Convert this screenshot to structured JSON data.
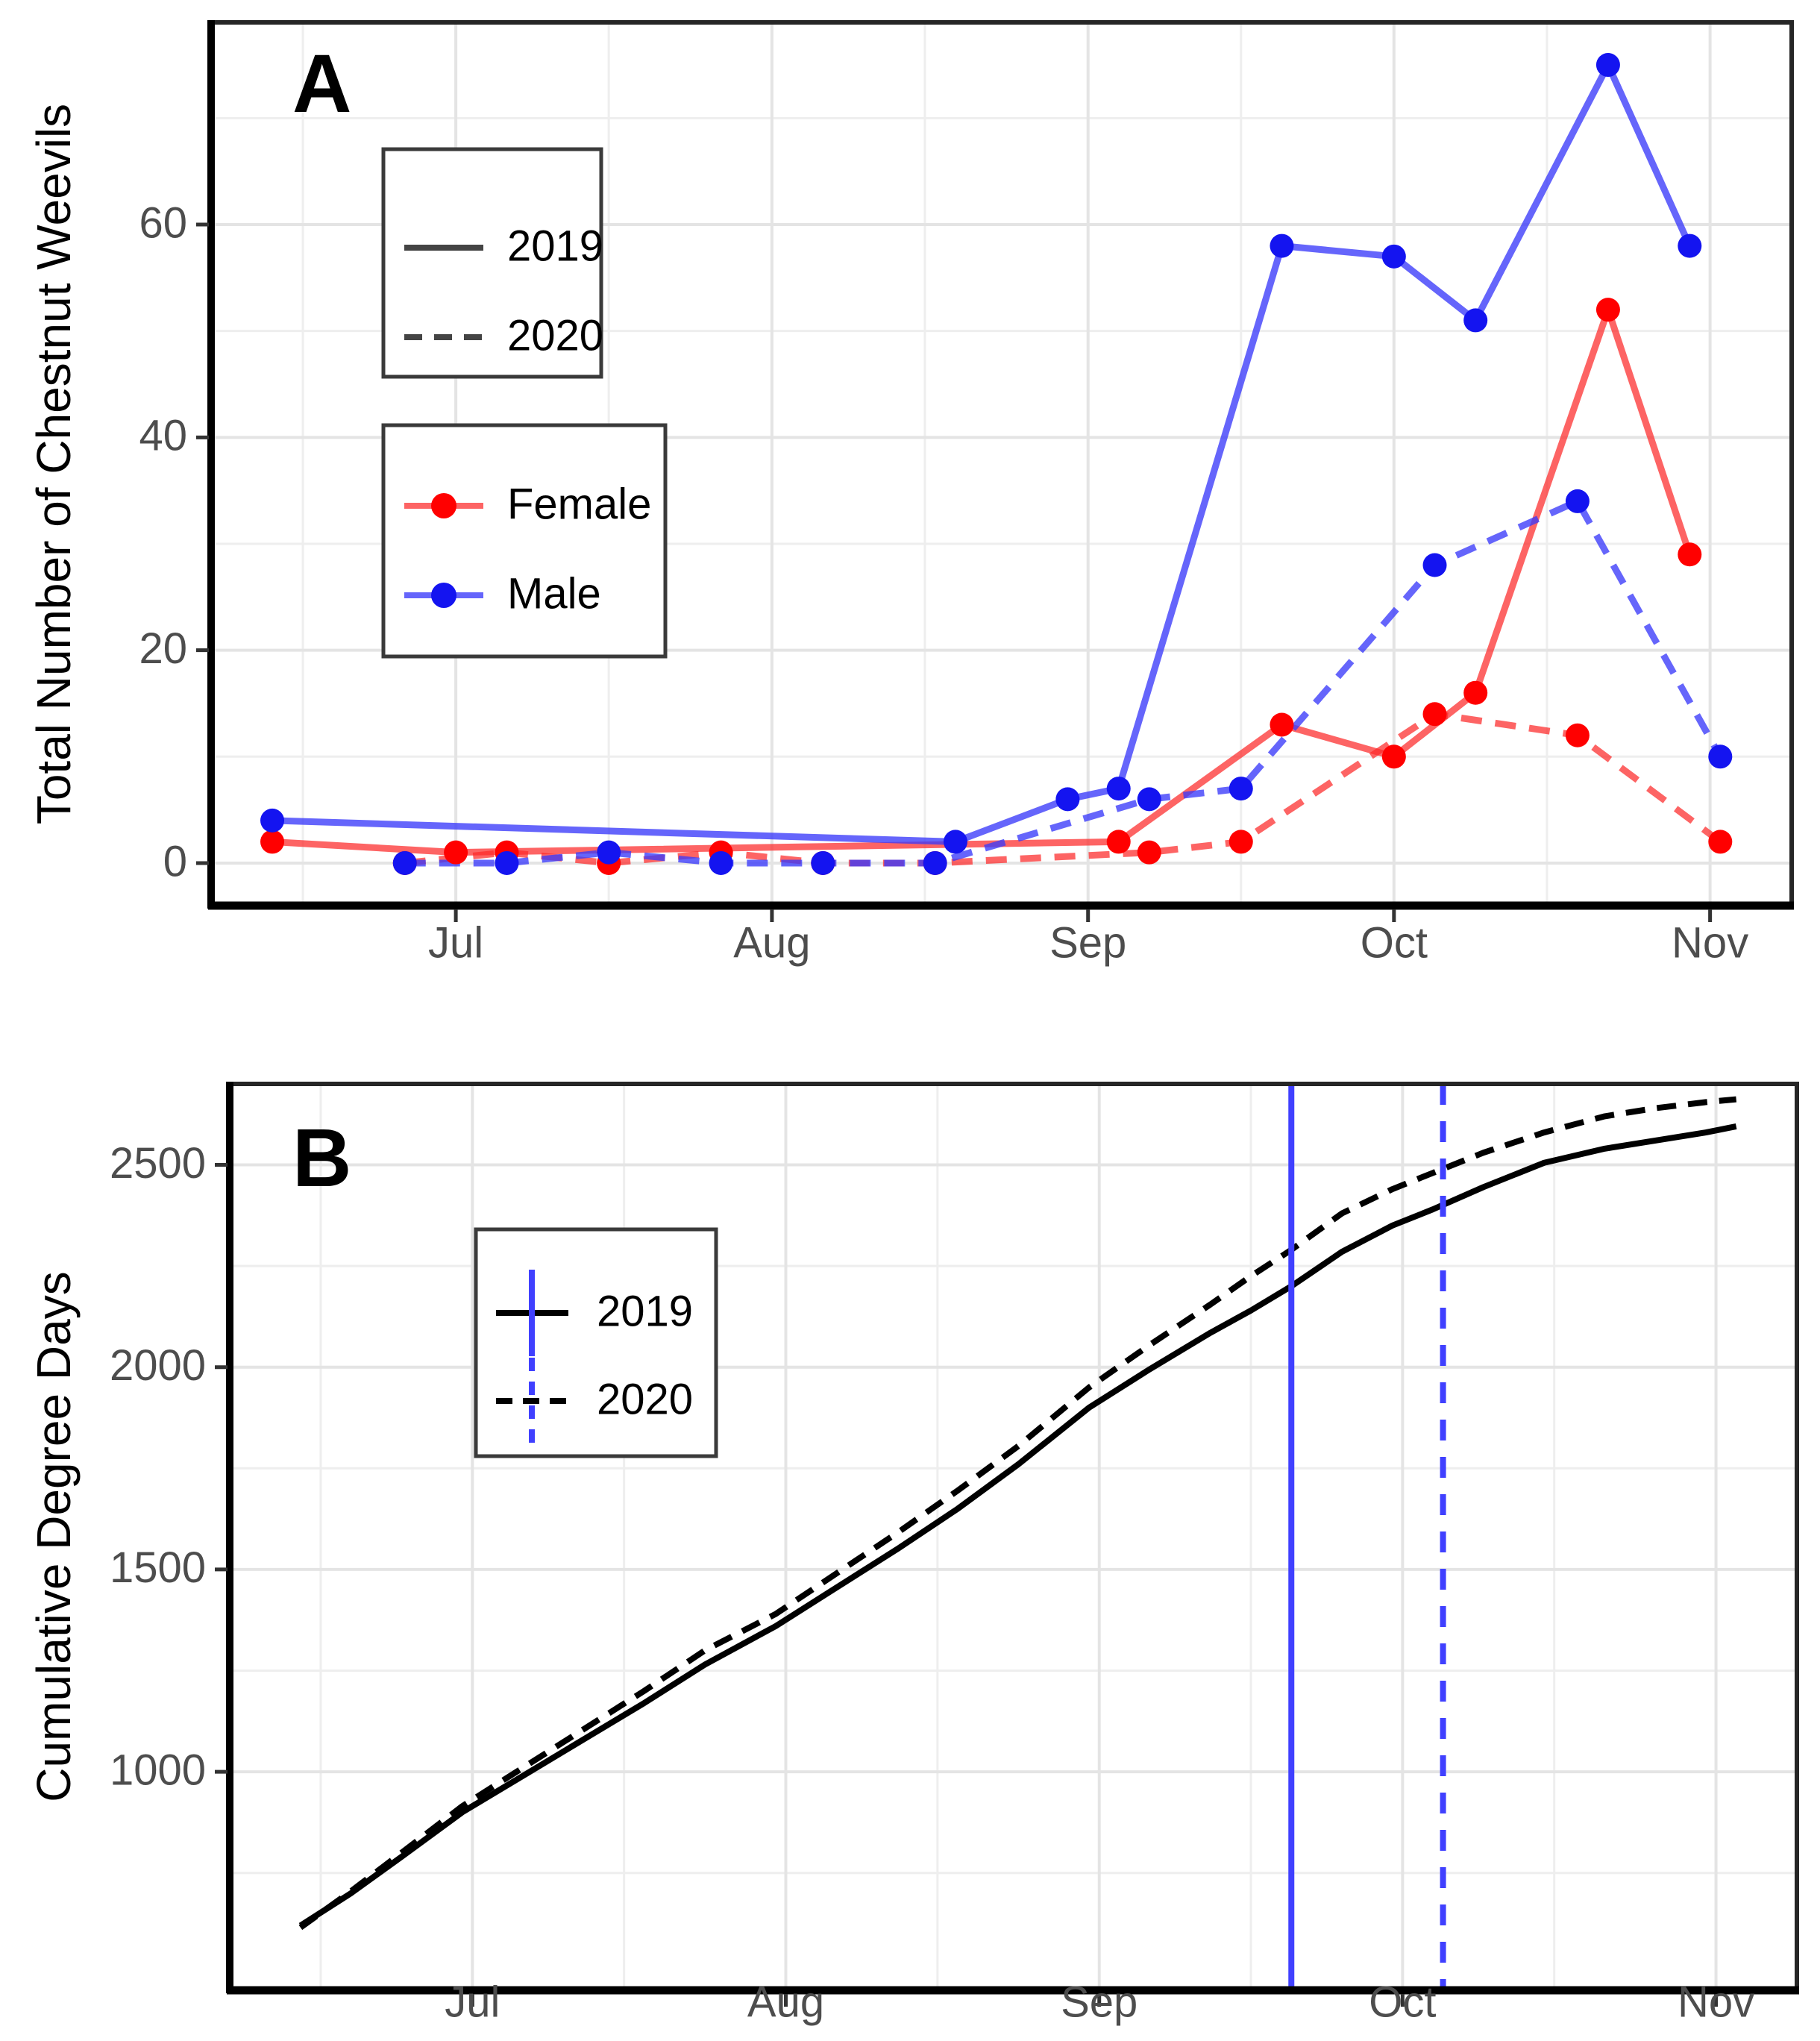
{
  "figure": {
    "background": "#ffffff",
    "colors": {
      "female": "#ff0000",
      "male": "#1414f0",
      "female_line": "rgba(252,40,40,0.72)",
      "male_line": "rgba(58,58,250,0.78)",
      "degree_day_curve": "#000000",
      "vline_blue": "#4040ff",
      "grid_major": "#e4e4e4",
      "grid_minor": "#eeeeee",
      "tick_text": "#4d4d4d",
      "panel_border": "#262626"
    }
  },
  "chart_data": [
    {
      "type": "line",
      "panel_label": "A",
      "y_title": "Total Number of Chestnut Weevils",
      "x_tick_labels": [
        "Jul",
        "Aug",
        "Sep",
        "Oct",
        "Nov"
      ],
      "x_tick_days": [
        18,
        49,
        80,
        110,
        141
      ],
      "x_minor_days": [
        3,
        33,
        64,
        95,
        125
      ],
      "day_index_origin": "Jun 13",
      "x_domain_days": [
        -6,
        149
      ],
      "ylim": [
        -4,
        79
      ],
      "y_major": [
        0,
        20,
        40,
        60
      ],
      "y_minor": [
        10,
        30,
        50,
        70
      ],
      "grid": true,
      "legend_years": {
        "position": "top-left-inset",
        "items": [
          {
            "label": "2019",
            "style": "solid"
          },
          {
            "label": "2020",
            "style": "dashed"
          }
        ]
      },
      "legend_sex": {
        "position": "left-inset",
        "items": [
          {
            "label": "Female",
            "color_key": "female"
          },
          {
            "label": "Male",
            "color_key": "male"
          }
        ]
      },
      "series": [
        {
          "name": "Female 2019",
          "sex": "Female",
          "year": "2019",
          "style": "solid",
          "color_key": "female",
          "points": [
            {
              "date": "Jun 13",
              "day": 0,
              "count": 2
            },
            {
              "date": "Jul 1",
              "day": 18,
              "count": 1
            },
            {
              "date": "Sep 4",
              "day": 83,
              "count": 2
            },
            {
              "date": "Sep 20",
              "day": 99,
              "count": 13
            },
            {
              "date": "Oct 1",
              "day": 110,
              "count": 10
            },
            {
              "date": "Oct 9",
              "day": 118,
              "count": 16
            },
            {
              "date": "Oct 22",
              "day": 131,
              "count": 52
            },
            {
              "date": "Oct 30",
              "day": 139,
              "count": 29
            }
          ]
        },
        {
          "name": "Male 2019",
          "sex": "Male",
          "year": "2019",
          "style": "solid",
          "color_key": "male",
          "points": [
            {
              "date": "Jun 13",
              "day": 0,
              "count": 4
            },
            {
              "date": "Aug 19",
              "day": 67,
              "count": 2
            },
            {
              "date": "Aug 30",
              "day": 78,
              "count": 6
            },
            {
              "date": "Sep 4",
              "day": 83,
              "count": 7
            },
            {
              "date": "Sep 20",
              "day": 99,
              "count": 58
            },
            {
              "date": "Oct 1",
              "day": 110,
              "count": 57
            },
            {
              "date": "Oct 9",
              "day": 118,
              "count": 51
            },
            {
              "date": "Oct 22",
              "day": 131,
              "count": 75
            },
            {
              "date": "Oct 30",
              "day": 139,
              "count": 58
            }
          ]
        },
        {
          "name": "Female 2020",
          "sex": "Female",
          "year": "2020",
          "style": "dashed",
          "color_key": "female",
          "points": [
            {
              "date": "Jun 26",
              "day": 13,
              "count": 0
            },
            {
              "date": "Jul 6",
              "day": 23,
              "count": 1
            },
            {
              "date": "Jul 16",
              "day": 33,
              "count": 0
            },
            {
              "date": "Jul 27",
              "day": 44,
              "count": 1
            },
            {
              "date": "Aug 6",
              "day": 54,
              "count": 0
            },
            {
              "date": "Aug 17",
              "day": 65,
              "count": 0
            },
            {
              "date": "Sep 7",
              "day": 86,
              "count": 1
            },
            {
              "date": "Sep 16",
              "day": 95,
              "count": 2
            },
            {
              "date": "Oct 5",
              "day": 114,
              "count": 14
            },
            {
              "date": "Oct 19",
              "day": 128,
              "count": 12
            },
            {
              "date": "Nov 2",
              "day": 142,
              "count": 2
            }
          ]
        },
        {
          "name": "Male 2020",
          "sex": "Male",
          "year": "2020",
          "style": "dashed",
          "color_key": "male",
          "points": [
            {
              "date": "Jun 26",
              "day": 13,
              "count": 0
            },
            {
              "date": "Jul 6",
              "day": 23,
              "count": 0
            },
            {
              "date": "Jul 16",
              "day": 33,
              "count": 1
            },
            {
              "date": "Jul 27",
              "day": 44,
              "count": 0
            },
            {
              "date": "Aug 6",
              "day": 54,
              "count": 0
            },
            {
              "date": "Aug 17",
              "day": 65,
              "count": 0
            },
            {
              "date": "Sep 7",
              "day": 86,
              "count": 6
            },
            {
              "date": "Sep 16",
              "day": 95,
              "count": 7
            },
            {
              "date": "Oct 5",
              "day": 114,
              "count": 28
            },
            {
              "date": "Oct 19",
              "day": 128,
              "count": 34
            },
            {
              "date": "Nov 2",
              "day": 142,
              "count": 10
            }
          ]
        }
      ]
    },
    {
      "type": "line",
      "panel_label": "B",
      "y_title": "Cumulative Degree Days",
      "x_tick_labels": [
        "Jul",
        "Aug",
        "Sep",
        "Oct",
        "Nov"
      ],
      "x_tick_days": [
        18,
        49,
        80,
        110,
        141
      ],
      "x_minor_days": [
        3,
        33,
        64,
        95,
        125
      ],
      "day_index_origin": "Jun 13",
      "x_domain_days": [
        -6,
        149
      ],
      "ylim": [
        460,
        2700
      ],
      "y_major": [
        1000,
        1500,
        2000,
        2500
      ],
      "y_minor": [
        750,
        1250,
        1750,
        2250
      ],
      "grid": true,
      "legend": {
        "position": "upper-left-inset",
        "items": [
          {
            "label": "2019",
            "style": "solid"
          },
          {
            "label": "2020",
            "style": "dashed"
          }
        ]
      },
      "series": [
        {
          "name": "2019",
          "year": "2019",
          "style": "solid",
          "color_key": "degree_day_curve",
          "markers": false,
          "points": [
            [
              1,
              620
            ],
            [
              6,
              700
            ],
            [
              11,
              790
            ],
            [
              17,
              900
            ],
            [
              23,
              990
            ],
            [
              29,
              1080
            ],
            [
              35,
              1170
            ],
            [
              41,
              1265
            ],
            [
              48,
              1360
            ],
            [
              54,
              1455
            ],
            [
              60,
              1550
            ],
            [
              66,
              1650
            ],
            [
              72,
              1760
            ],
            [
              79,
              1900
            ],
            [
              85,
              1995
            ],
            [
              91,
              2085
            ],
            [
              95,
              2140
            ],
            [
              99,
              2200
            ],
            [
              104,
              2285
            ],
            [
              109,
              2350
            ],
            [
              113,
              2390
            ],
            [
              118,
              2445
            ],
            [
              124,
              2505
            ],
            [
              130,
              2540
            ],
            [
              135,
              2560
            ],
            [
              140,
              2580
            ],
            [
              143,
              2595
            ]
          ]
        },
        {
          "name": "2020",
          "year": "2020",
          "style": "dashed",
          "color_key": "degree_day_curve",
          "markers": false,
          "points": [
            [
              1,
              615
            ],
            [
              6,
              705
            ],
            [
              11,
              800
            ],
            [
              17,
              915
            ],
            [
              23,
              1010
            ],
            [
              29,
              1105
            ],
            [
              35,
              1200
            ],
            [
              41,
              1300
            ],
            [
              48,
              1390
            ],
            [
              54,
              1490
            ],
            [
              60,
              1590
            ],
            [
              66,
              1695
            ],
            [
              72,
              1805
            ],
            [
              79,
              1950
            ],
            [
              85,
              2055
            ],
            [
              91,
              2155
            ],
            [
              95,
              2225
            ],
            [
              99,
              2290
            ],
            [
              104,
              2380
            ],
            [
              109,
              2440
            ],
            [
              113,
              2480
            ],
            [
              118,
              2530
            ],
            [
              124,
              2580
            ],
            [
              130,
              2620
            ],
            [
              135,
              2640
            ],
            [
              140,
              2655
            ],
            [
              143,
              2662
            ]
          ]
        }
      ],
      "vlines": [
        {
          "year": "2019",
          "date": "Sep 20",
          "day": 99,
          "style": "solid",
          "color_key": "vline_blue"
        },
        {
          "year": "2020",
          "date": "Oct 5",
          "day": 114,
          "style": "dashed",
          "color_key": "vline_blue"
        }
      ]
    }
  ]
}
